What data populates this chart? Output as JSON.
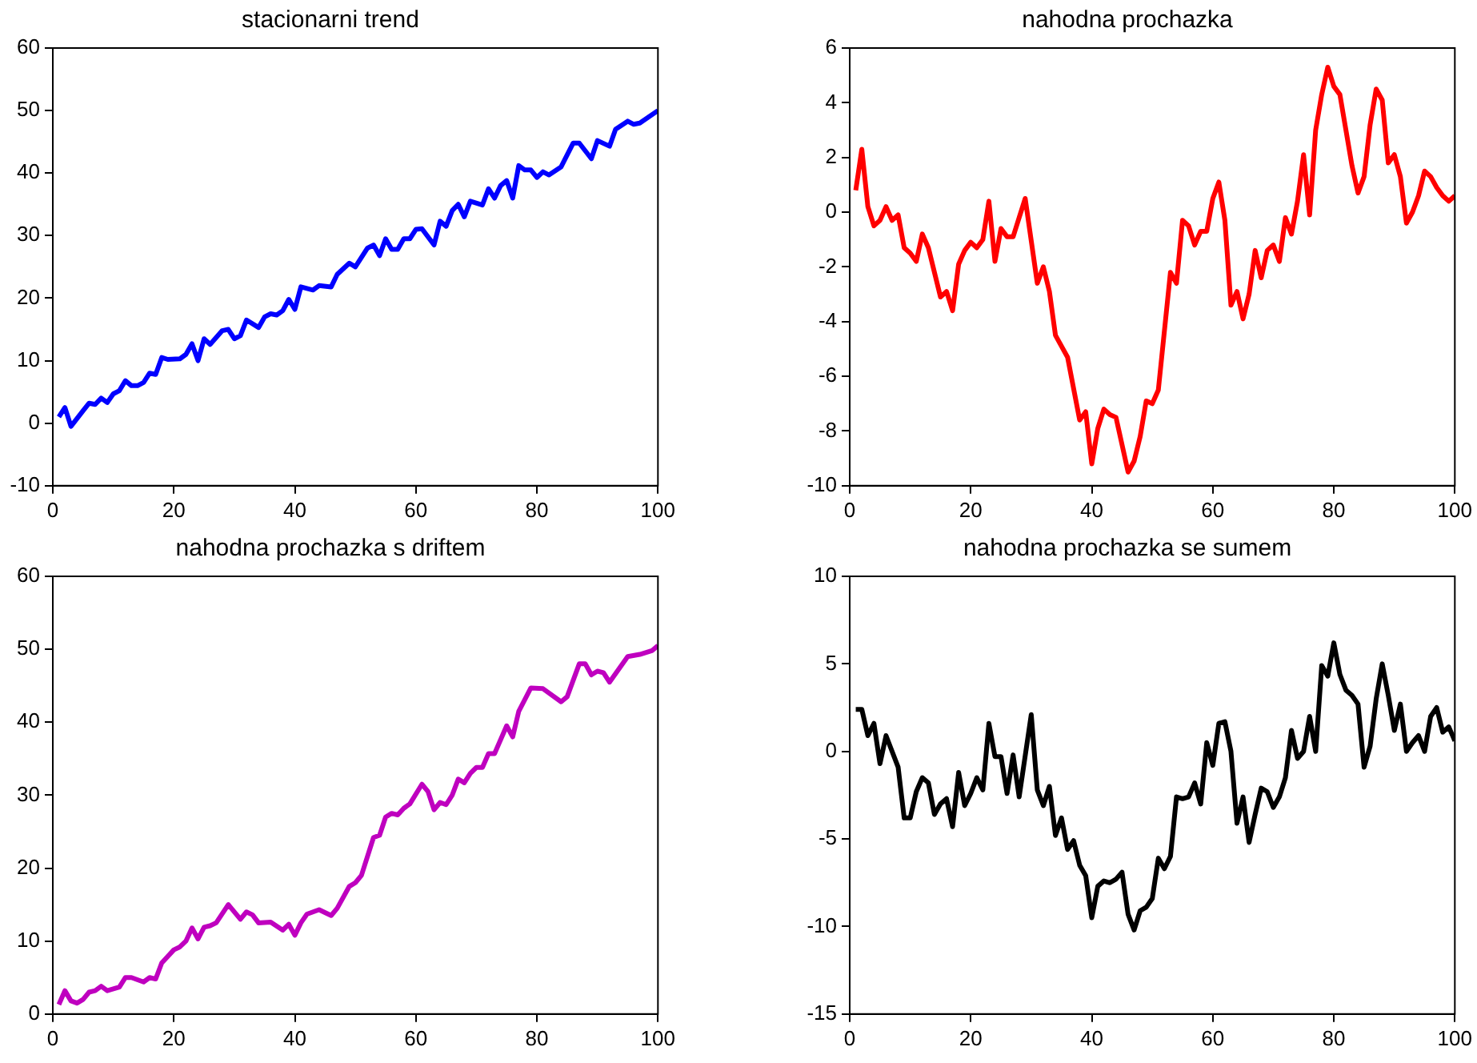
{
  "chart_data": [
    {
      "type": "line",
      "title": "stacionarni trend",
      "color": "#0000ff",
      "xlim": [
        0,
        100
      ],
      "xticks": [
        0,
        20,
        40,
        60,
        80,
        100
      ],
      "ylim": [
        -10,
        60
      ],
      "yticks": [
        -10,
        0,
        10,
        20,
        30,
        40,
        50,
        60
      ],
      "grid": false,
      "x": [
        1,
        2,
        3,
        5,
        6,
        7,
        8,
        9,
        10,
        11,
        12,
        13,
        14,
        15,
        16,
        17,
        18,
        19,
        21,
        22,
        23,
        24,
        25,
        26,
        28,
        29,
        30,
        31,
        32,
        34,
        35,
        36,
        37,
        38,
        39,
        40,
        41,
        43,
        44,
        46,
        47,
        49,
        50,
        52,
        53,
        54,
        55,
        56,
        57,
        58,
        59,
        60,
        61,
        63,
        64,
        65,
        66,
        67,
        68,
        69,
        71,
        72,
        73,
        74,
        75,
        76,
        77,
        78,
        79,
        80,
        81,
        82,
        84,
        86,
        87,
        89,
        90,
        92,
        93,
        95,
        96,
        97,
        100
      ],
      "values": [
        1,
        2.5,
        -0.5,
        2,
        3.2,
        3,
        4,
        3.3,
        4.7,
        5.2,
        6.8,
        6,
        6,
        6.5,
        8,
        7.8,
        10.5,
        10.2,
        10.3,
        11,
        12.7,
        10,
        13.5,
        12.6,
        14.8,
        15,
        13.5,
        14,
        16.5,
        15.3,
        17,
        17.5,
        17.3,
        18,
        19.8,
        18.2,
        21.8,
        21.3,
        22,
        21.8,
        23.8,
        25.6,
        25,
        28,
        28.5,
        26.8,
        29.5,
        27.8,
        27.8,
        29.5,
        29.5,
        31,
        31.1,
        28.5,
        32.3,
        31.5,
        34,
        35,
        33,
        35.5,
        34.9,
        37.5,
        36,
        38,
        38.8,
        36,
        41.2,
        40.5,
        40.5,
        39.3,
        40.2,
        39.7,
        41,
        44.8,
        44.8,
        42.3,
        45.2,
        44.3,
        47,
        48.3,
        47.8,
        48,
        50
      ]
    },
    {
      "type": "line",
      "title": "nahodna prochazka",
      "color": "#ff0000",
      "xlim": [
        0,
        100
      ],
      "xticks": [
        0,
        20,
        40,
        60,
        80,
        100
      ],
      "ylim": [
        -10,
        6
      ],
      "yticks": [
        -10,
        -8,
        -6,
        -4,
        -2,
        0,
        2,
        4,
        6
      ],
      "grid": false,
      "x": [
        1,
        2,
        3,
        4,
        5,
        6,
        7,
        8,
        9,
        10,
        11,
        12,
        13,
        15,
        16,
        17,
        18,
        19,
        20,
        21,
        22,
        23,
        24,
        25,
        26,
        27,
        29,
        31,
        32,
        33,
        34,
        36,
        38,
        39,
        40,
        41,
        42,
        43,
        44,
        46,
        47,
        48,
        49,
        50,
        51,
        53,
        54,
        55,
        56,
        57,
        58,
        59,
        60,
        61,
        62,
        63,
        64,
        65,
        66,
        67,
        68,
        69,
        70,
        71,
        72,
        73,
        74,
        75,
        76,
        77,
        78,
        79,
        80,
        81,
        82,
        83,
        84,
        85,
        86,
        87,
        88,
        89,
        90,
        91,
        92,
        93,
        94,
        95,
        96,
        97,
        98,
        99,
        100
      ],
      "values": [
        0.8,
        2.3,
        0.2,
        -0.5,
        -0.3,
        0.2,
        -0.3,
        -0.1,
        -1.3,
        -1.5,
        -1.8,
        -0.8,
        -1.3,
        -3.1,
        -2.9,
        -3.6,
        -1.9,
        -1.4,
        -1.1,
        -1.3,
        -1,
        0.4,
        -1.8,
        -0.6,
        -0.9,
        -0.9,
        0.5,
        -2.6,
        -2,
        -2.9,
        -4.5,
        -5.3,
        -7.6,
        -7.3,
        -9.2,
        -7.9,
        -7.2,
        -7.4,
        -7.5,
        -9.5,
        -9.1,
        -8.2,
        -6.9,
        -7,
        -6.5,
        -2.2,
        -2.6,
        -0.3,
        -0.5,
        -1.2,
        -0.7,
        -0.7,
        0.5,
        1.1,
        -0.3,
        -3.4,
        -2.9,
        -3.9,
        -3,
        -1.4,
        -2.4,
        -1.4,
        -1.2,
        -1.8,
        -0.2,
        -0.8,
        0.4,
        2.1,
        -0.1,
        3,
        4.3,
        5.3,
        4.6,
        4.3,
        3,
        1.7,
        0.7,
        1.3,
        3.2,
        4.5,
        4.1,
        1.8,
        2.1,
        1.3,
        -0.4,
        0,
        0.6,
        1.5,
        1.3,
        0.9,
        0.6,
        0.4,
        0.6
      ]
    },
    {
      "type": "line",
      "title": "nahodna prochazka s driftem",
      "color": "#bf00bf",
      "xlim": [
        0,
        100
      ],
      "xticks": [
        0,
        20,
        40,
        60,
        80,
        100
      ],
      "ylim": [
        0,
        60
      ],
      "yticks": [
        0,
        10,
        20,
        30,
        40,
        50,
        60
      ],
      "grid": false,
      "x": [
        1,
        2,
        3,
        4,
        5,
        6,
        7,
        8,
        9,
        11,
        12,
        13,
        15,
        16,
        17,
        18,
        20,
        21,
        22,
        23,
        24,
        25,
        26,
        27,
        29,
        31,
        32,
        33,
        34,
        36,
        38,
        39,
        40,
        41,
        42,
        44,
        46,
        47,
        49,
        50,
        51,
        53,
        54,
        55,
        56,
        57,
        58,
        59,
        61,
        62,
        63,
        64,
        65,
        66,
        67,
        68,
        69,
        70,
        71,
        72,
        73,
        75,
        76,
        77,
        79,
        81,
        84,
        85,
        87,
        88,
        89,
        90,
        91,
        92,
        95,
        97,
        99,
        100
      ],
      "values": [
        1.3,
        3.2,
        1.8,
        1.5,
        2,
        3,
        3.2,
        3.8,
        3.2,
        3.7,
        5,
        5,
        4.4,
        5,
        4.8,
        7,
        8.8,
        9.2,
        10,
        11.8,
        10.3,
        11.9,
        12.1,
        12.5,
        15,
        13,
        14,
        13.6,
        12.5,
        12.6,
        11.5,
        12.3,
        10.8,
        12.5,
        13.7,
        14.3,
        13.5,
        14.5,
        17.5,
        18,
        19,
        24.2,
        24.5,
        27,
        27.5,
        27.3,
        28.2,
        28.8,
        31.5,
        30.5,
        28,
        29,
        28.7,
        30,
        32.2,
        31.7,
        33,
        33.8,
        33.8,
        35.7,
        35.7,
        39.5,
        38,
        41.5,
        44.7,
        44.6,
        42.8,
        43.5,
        48,
        48,
        46.5,
        47,
        46.8,
        45.5,
        49,
        49.3,
        49.8,
        50.5
      ]
    },
    {
      "type": "line",
      "title": "nahodna prochazka se sumem",
      "color": "#000000",
      "xlim": [
        0,
        100
      ],
      "xticks": [
        0,
        20,
        40,
        60,
        80,
        100
      ],
      "ylim": [
        -15,
        10
      ],
      "yticks": [
        -15,
        -10,
        -5,
        0,
        5,
        10
      ],
      "grid": false,
      "x": [
        1,
        2,
        3,
        4,
        5,
        6,
        8,
        9,
        10,
        11,
        12,
        13,
        14,
        15,
        16,
        17,
        18,
        19,
        20,
        21,
        22,
        23,
        24,
        25,
        26,
        27,
        28,
        30,
        31,
        32,
        33,
        34,
        35,
        36,
        37,
        38,
        39,
        40,
        41,
        42,
        43,
        44,
        45,
        46,
        47,
        48,
        49,
        50,
        51,
        52,
        53,
        54,
        55,
        56,
        57,
        58,
        59,
        60,
        61,
        62,
        63,
        64,
        65,
        66,
        67,
        68,
        69,
        70,
        71,
        72,
        73,
        74,
        75,
        76,
        77,
        78,
        79,
        80,
        81,
        82,
        83,
        84,
        85,
        86,
        87,
        88,
        89,
        90,
        91,
        92,
        93,
        94,
        95,
        96,
        97,
        98,
        99,
        100
      ],
      "values": [
        2.4,
        2.4,
        0.9,
        1.6,
        -0.7,
        0.9,
        -0.9,
        -3.8,
        -3.8,
        -2.3,
        -1.5,
        -1.8,
        -3.6,
        -3,
        -2.7,
        -4.3,
        -1.2,
        -3.1,
        -2.4,
        -1.5,
        -2.2,
        1.6,
        -0.3,
        -0.3,
        -2.4,
        -0.2,
        -2.6,
        2.1,
        -2.2,
        -3.1,
        -2,
        -4.8,
        -3.8,
        -5.6,
        -5.1,
        -6.5,
        -7.1,
        -9.5,
        -7.7,
        -7.4,
        -7.5,
        -7.3,
        -6.9,
        -9.3,
        -10.2,
        -9.1,
        -8.9,
        -8.4,
        -6.1,
        -6.7,
        -6,
        -2.6,
        -2.7,
        -2.6,
        -1.8,
        -3,
        0.5,
        -0.8,
        1.6,
        1.7,
        0,
        -4.1,
        -2.6,
        -5.2,
        -3.6,
        -2.1,
        -2.3,
        -3.2,
        -2.6,
        -1.5,
        1.2,
        -0.4,
        0,
        2,
        0,
        4.9,
        4.3,
        6.2,
        4.4,
        3.5,
        3.2,
        2.7,
        -0.9,
        0.3,
        3,
        5,
        3.2,
        1.2,
        2.7,
        0,
        0.5,
        0.9,
        0,
        2,
        2.5,
        1.1,
        1.4,
        0.6
      ]
    }
  ]
}
